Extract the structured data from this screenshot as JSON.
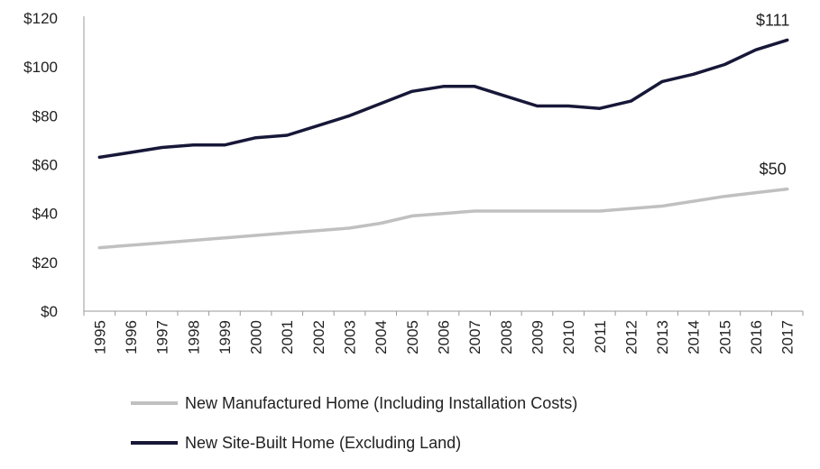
{
  "chart_data": {
    "type": "line",
    "title": "",
    "xlabel": "",
    "ylabel": "",
    "x": [
      "1995",
      "1996",
      "1997",
      "1998",
      "1999",
      "2000",
      "2001",
      "2002",
      "2003",
      "2004",
      "2005",
      "2006",
      "2007",
      "2008",
      "2009",
      "2010",
      "2011",
      "2012",
      "2013",
      "2014",
      "2015",
      "2016",
      "2017"
    ],
    "ylim": [
      0,
      120
    ],
    "yticks": [
      0,
      20,
      40,
      60,
      80,
      100,
      120
    ],
    "ytick_labels": [
      "$0",
      "$20",
      "$40",
      "$60",
      "$80",
      "$100",
      "$120"
    ],
    "grid": false,
    "legend_position": "bottom",
    "series": [
      {
        "name": "New Manufactured Home (Including Installation Costs)",
        "color": "#c0c0c0",
        "values": [
          26,
          27,
          28,
          29,
          30,
          31,
          32,
          33,
          34,
          36,
          39,
          40,
          41,
          41,
          41,
          41,
          41,
          42,
          43,
          45,
          47,
          48.5,
          50
        ],
        "end_label": "$50"
      },
      {
        "name": "New Site-Built Home (Excluding Land)",
        "color": "#171738",
        "values": [
          63,
          65,
          67,
          68,
          68,
          71,
          72,
          76,
          80,
          85,
          90,
          92,
          92,
          88,
          84,
          84,
          83,
          86,
          94,
          97,
          101,
          107,
          111
        ],
        "end_label": "$111"
      }
    ]
  }
}
